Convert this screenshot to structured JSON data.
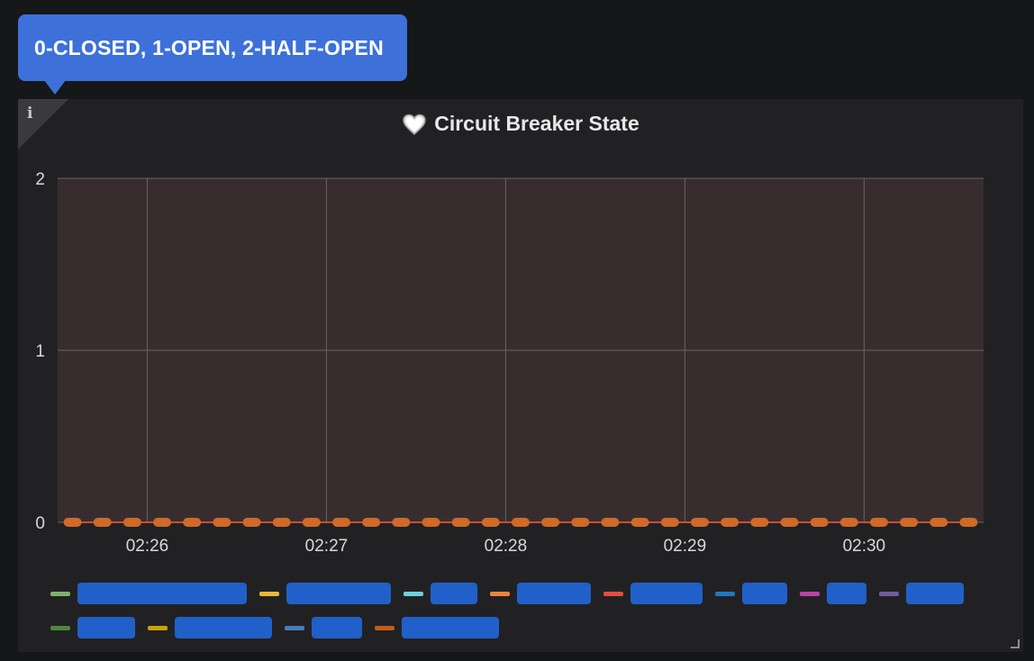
{
  "tooltip": {
    "text": "0-CLOSED, 1-OPEN, 2-HALF-OPEN"
  },
  "panel": {
    "info_icon": "i",
    "heart_icon": "heart-icon"
  },
  "colors": {
    "plot_bg": "#382d2e",
    "grid": "#6a6262",
    "series_line": "#cf4c2f",
    "series_marker": "#cf6a28",
    "tooltip_bg": "#3d71d9",
    "redaction": "#2160c8"
  },
  "chart_data": {
    "type": "line",
    "title": "Circuit Breaker State",
    "xlabel": "",
    "ylabel": "",
    "ylim": [
      0,
      2
    ],
    "y_ticks": [
      "0",
      "1",
      "2"
    ],
    "x_ticks": [
      "02:26",
      "02:27",
      "02:28",
      "02:29",
      "02:30"
    ],
    "x": [
      "02:25:35",
      "02:25:45",
      "02:25:55",
      "02:26:05",
      "02:26:15",
      "02:26:25",
      "02:26:35",
      "02:26:45",
      "02:26:55",
      "02:27:05",
      "02:27:15",
      "02:27:25",
      "02:27:35",
      "02:27:45",
      "02:27:55",
      "02:28:05",
      "02:28:15",
      "02:28:25",
      "02:28:35",
      "02:28:45",
      "02:28:55",
      "02:29:05",
      "02:29:15",
      "02:29:25",
      "02:29:35",
      "02:29:45",
      "02:29:55",
      "02:30:05",
      "02:30:15",
      "02:30:25",
      "02:30:35"
    ],
    "series": [
      {
        "values": [
          0,
          0,
          0,
          0,
          0,
          0,
          0,
          0,
          0,
          0,
          0,
          0,
          0,
          0,
          0,
          0,
          0,
          0,
          0,
          0,
          0,
          0,
          0,
          0,
          0,
          0,
          0,
          0,
          0,
          0,
          0
        ]
      }
    ],
    "grid": true,
    "legend_position": "bottom"
  },
  "legend": {
    "rows": [
      [
        {
          "color": "#7eb26d",
          "label": ""
        },
        {
          "color": "#eab839",
          "label": ""
        },
        {
          "color": "#6ed0e0",
          "label": ""
        },
        {
          "color": "#ef843c",
          "label": ""
        },
        {
          "color": "#e24d42",
          "label": ""
        },
        {
          "color": "#1f78c1",
          "label": ""
        },
        {
          "color": "#ba43a9",
          "label": ""
        },
        {
          "color": "#705da0",
          "label": ""
        }
      ],
      [
        {
          "color": "#508642",
          "label": ""
        },
        {
          "color": "#cca300",
          "label": ""
        },
        {
          "color": "#447ebc",
          "label": ""
        },
        {
          "color": "#c15c17",
          "label": ""
        }
      ]
    ]
  }
}
